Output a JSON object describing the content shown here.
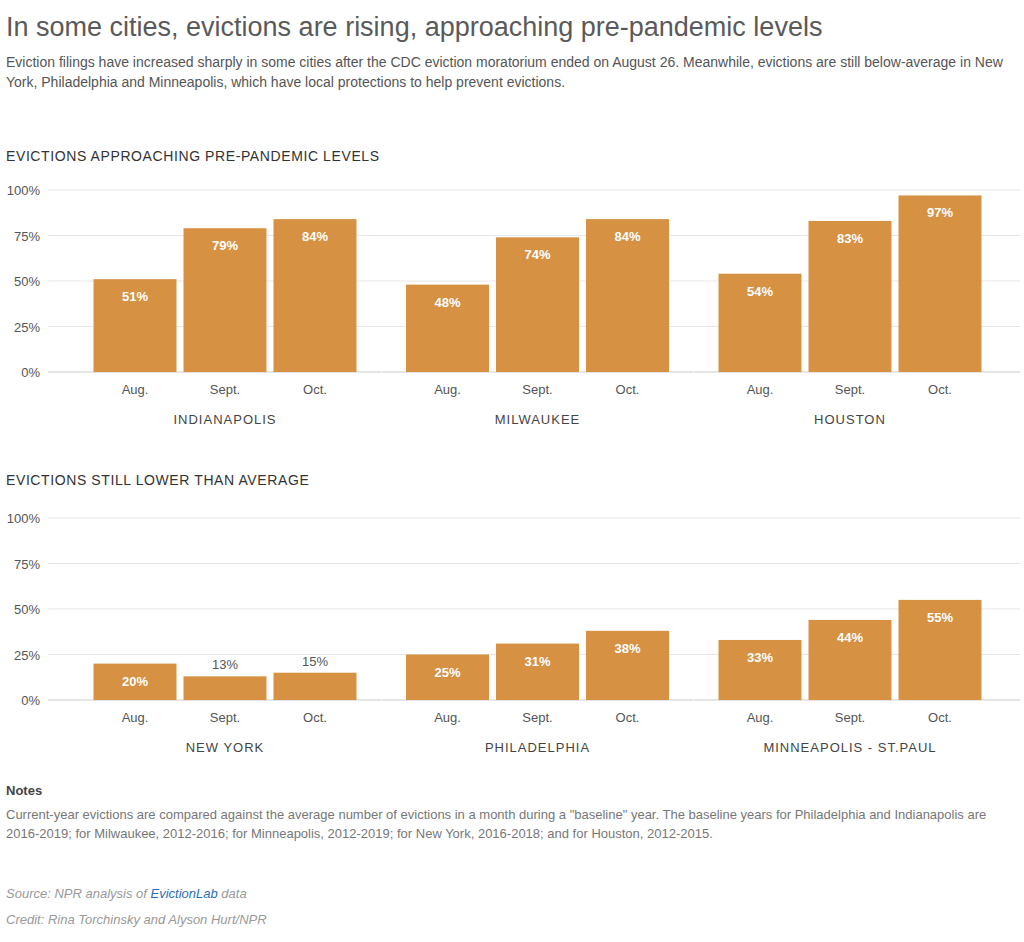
{
  "header": {
    "title": "In some cities, evictions are rising, approaching pre-pandemic levels",
    "subtitle": "Eviction filings have increased sharply in some cities after the CDC eviction moratorium ended on August 26. Meanwhile, evictions are still below-average in New York, Philadelphia and Minneapolis, which have local protections to help prevent evictions."
  },
  "sections": [
    "EVICTIONS APPROACHING PRE-PANDEMIC LEVELS",
    "EVICTIONS STILL LOWER THAN AVERAGE"
  ],
  "chart_data": [
    {
      "type": "bar",
      "title": "INDIANAPOLIS",
      "categories": [
        "Aug.",
        "Sept.",
        "Oct."
      ],
      "values": [
        51,
        79,
        84
      ],
      "value_labels": [
        "51%",
        "79%",
        "84%"
      ],
      "data_labels": true,
      "color": "#d69142",
      "ylim": [
        0,
        100
      ],
      "yticks": [
        {
          "value": 0,
          "label": "0%"
        },
        {
          "value": 25,
          "label": "25%"
        },
        {
          "value": 50,
          "label": "50%"
        },
        {
          "value": 75,
          "label": "75%"
        },
        {
          "value": 100,
          "label": "100%"
        }
      ],
      "grid": true
    },
    {
      "type": "bar",
      "title": "MILWAUKEE",
      "categories": [
        "Aug.",
        "Sept.",
        "Oct."
      ],
      "values": [
        48,
        74,
        84
      ],
      "value_labels": [
        "48%",
        "74%",
        "84%"
      ],
      "data_labels": true,
      "color": "#d69142",
      "ylim": [
        0,
        100
      ],
      "yticks": [
        {
          "value": 0,
          "label": "0%"
        },
        {
          "value": 25,
          "label": "25%"
        },
        {
          "value": 50,
          "label": "50%"
        },
        {
          "value": 75,
          "label": "75%"
        },
        {
          "value": 100,
          "label": "100%"
        }
      ],
      "grid": true,
      "tick_labels": "x"
    },
    {
      "type": "bar",
      "title": "HOUSTON",
      "categories": [
        "Aug.",
        "Sept.",
        "Oct."
      ],
      "values": [
        54,
        83,
        97
      ],
      "value_labels": [
        "54%",
        "83%",
        "97%"
      ],
      "data_labels": true,
      "color": "#d69142",
      "ylim": [
        0,
        100
      ],
      "yticks": [
        {
          "value": 0,
          "label": "0%"
        },
        {
          "value": 25,
          "label": "25%"
        },
        {
          "value": 50,
          "label": "50%"
        },
        {
          "value": 75,
          "label": "75%"
        },
        {
          "value": 100,
          "label": "100%"
        }
      ],
      "grid": true,
      "tick_labels": "x"
    },
    {
      "type": "bar",
      "title": "NEW YORK",
      "categories": [
        "Aug.",
        "Sept.",
        "Oct."
      ],
      "values": [
        20,
        13,
        15
      ],
      "value_labels": [
        "20%",
        "13%",
        "15%"
      ],
      "data_labels": true,
      "color": "#d69142",
      "ylim": [
        0,
        100
      ],
      "yticks": [
        {
          "value": 0,
          "label": "0%"
        },
        {
          "value": 25,
          "label": "25%"
        },
        {
          "value": 50,
          "label": "50%"
        },
        {
          "value": 75,
          "label": "75%"
        },
        {
          "value": 100,
          "label": "100%"
        }
      ],
      "grid": true
    },
    {
      "type": "bar",
      "title": "PHILADELPHIA",
      "categories": [
        "Aug.",
        "Sept.",
        "Oct."
      ],
      "values": [
        25,
        31,
        38
      ],
      "value_labels": [
        "25%",
        "31%",
        "38%"
      ],
      "data_labels": true,
      "color": "#d69142",
      "ylim": [
        0,
        100
      ],
      "yticks": [
        {
          "value": 0,
          "label": "0%"
        },
        {
          "value": 25,
          "label": "25%"
        },
        {
          "value": 50,
          "label": "50%"
        },
        {
          "value": 75,
          "label": "75%"
        },
        {
          "value": 100,
          "label": "100%"
        }
      ],
      "grid": true,
      "tick_labels": "x"
    },
    {
      "type": "bar",
      "title": "MINNEAPOLIS - ST.PAUL",
      "categories": [
        "Aug.",
        "Sept.",
        "Oct."
      ],
      "values": [
        33,
        44,
        55
      ],
      "value_labels": [
        "33%",
        "44%",
        "55%"
      ],
      "data_labels": true,
      "color": "#d69142",
      "ylim": [
        0,
        100
      ],
      "yticks": [
        {
          "value": 0,
          "label": "0%"
        },
        {
          "value": 25,
          "label": "25%"
        },
        {
          "value": 50,
          "label": "50%"
        },
        {
          "value": 75,
          "label": "75%"
        },
        {
          "value": 100,
          "label": "100%"
        }
      ],
      "grid": true,
      "tick_labels": "x"
    }
  ],
  "notes": {
    "heading": "Notes",
    "text": "Current-year evictions are compared against the average number of evictions in a month during a \"baseline\" year. The baseline years for Philadelphia and Indianapolis are 2016-2019; for Milwaukee, 2012-2016; for Minneapolis, 2012-2019; for New York, 2016-2018; and for Houston, 2012-2015."
  },
  "source": {
    "prefix": "Source: NPR analysis of ",
    "link": "EvictionLab",
    "suffix": " data"
  },
  "credit": "Credit: Rina Torchinsky and Alyson Hurt/NPR"
}
